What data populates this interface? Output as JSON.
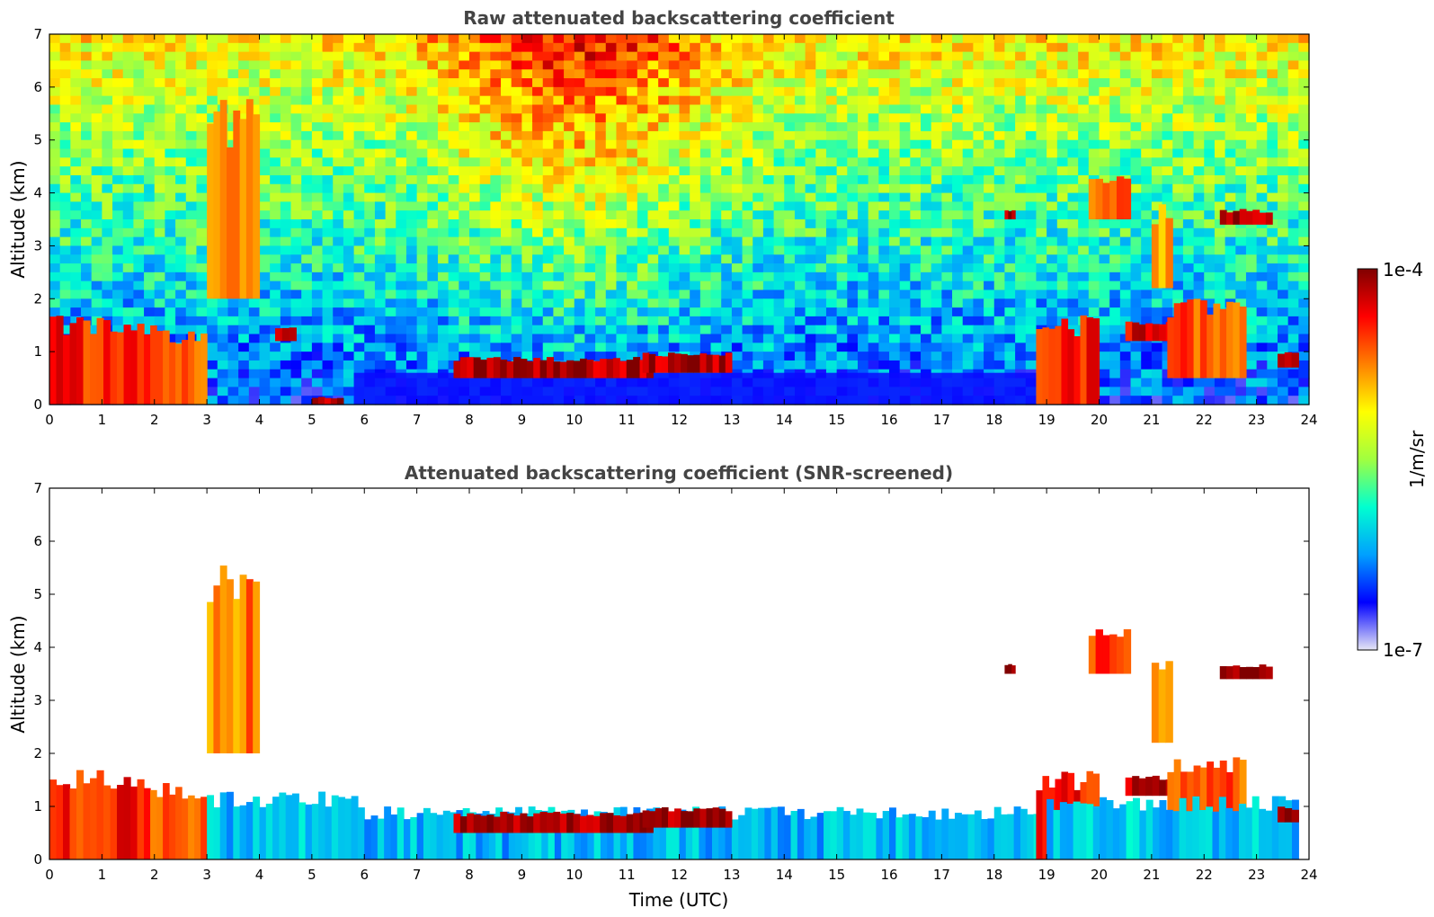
{
  "chart_data": [
    {
      "type": "heatmap",
      "title": "Raw attenuated backscattering coefficient",
      "xlabel": "",
      "ylabel": "Altitude (km)",
      "xlim": [
        0,
        24
      ],
      "ylim": [
        0,
        7
      ],
      "xticks": [
        "0",
        "1",
        "2",
        "3",
        "4",
        "5",
        "6",
        "7",
        "8",
        "9",
        "10",
        "11",
        "12",
        "13",
        "14",
        "15",
        "16",
        "17",
        "18",
        "19",
        "20",
        "21",
        "22",
        "23",
        "24"
      ],
      "yticks": [
        "0",
        "1",
        "2",
        "3",
        "4",
        "5",
        "6",
        "7"
      ],
      "colormap": "jet",
      "background_noise": "high",
      "features": [
        {
          "t0": 0.0,
          "t1": 1.8,
          "z0": 0.0,
          "z1": 1.7,
          "level": 0.85
        },
        {
          "t0": 1.8,
          "t1": 3.0,
          "z0": 0.0,
          "z1": 1.5,
          "level": 0.8
        },
        {
          "t0": 3.0,
          "t1": 4.0,
          "z0": 2.0,
          "z1": 5.8,
          "level": 0.75
        },
        {
          "t0": 4.3,
          "t1": 4.7,
          "z0": 1.2,
          "z1": 1.5,
          "level": 0.9
        },
        {
          "t0": 5.0,
          "t1": 5.6,
          "z0": 0.0,
          "z1": 0.15,
          "level": 0.95
        },
        {
          "t0": 7.7,
          "t1": 11.5,
          "z0": 0.5,
          "z1": 0.9,
          "level": 0.95
        },
        {
          "t0": 11.3,
          "t1": 13.0,
          "z0": 0.6,
          "z1": 1.0,
          "level": 0.95
        },
        {
          "t0": 18.2,
          "t1": 18.4,
          "z0": 3.5,
          "z1": 3.7,
          "level": 0.95
        },
        {
          "t0": 18.8,
          "t1": 20.0,
          "z0": 0.0,
          "z1": 1.7,
          "level": 0.85
        },
        {
          "t0": 19.8,
          "t1": 20.6,
          "z0": 3.5,
          "z1": 4.4,
          "level": 0.8
        },
        {
          "t0": 20.5,
          "t1": 22.3,
          "z0": 1.2,
          "z1": 1.6,
          "level": 0.9
        },
        {
          "t0": 21.0,
          "t1": 21.4,
          "z0": 2.2,
          "z1": 3.8,
          "level": 0.7
        },
        {
          "t0": 21.3,
          "t1": 22.8,
          "z0": 0.5,
          "z1": 2.0,
          "level": 0.8
        },
        {
          "t0": 22.3,
          "t1": 23.3,
          "z0": 3.4,
          "z1": 3.7,
          "level": 0.95
        },
        {
          "t0": 23.4,
          "t1": 23.8,
          "z0": 0.7,
          "z1": 1.0,
          "level": 0.9
        }
      ]
    },
    {
      "type": "heatmap",
      "title": "Attenuated backscattering coefficient (SNR-screened)",
      "xlabel": "Time (UTC)",
      "ylabel": "Altitude (km)",
      "xlim": [
        0,
        24
      ],
      "ylim": [
        0,
        7
      ],
      "xticks": [
        "0",
        "1",
        "2",
        "3",
        "4",
        "5",
        "6",
        "7",
        "8",
        "9",
        "10",
        "11",
        "12",
        "13",
        "14",
        "15",
        "16",
        "17",
        "18",
        "19",
        "20",
        "21",
        "22",
        "23",
        "24"
      ],
      "yticks": [
        "0",
        "1",
        "2",
        "3",
        "4",
        "5",
        "6",
        "7"
      ],
      "colormap": "jet",
      "background_noise": "none",
      "features": [
        {
          "t0": 0.0,
          "t1": 1.8,
          "z0": 0.0,
          "z1": 1.7,
          "level": 0.85
        },
        {
          "t0": 1.8,
          "t1": 3.0,
          "z0": 0.0,
          "z1": 1.5,
          "level": 0.8
        },
        {
          "t0": 3.0,
          "t1": 4.0,
          "z0": 2.0,
          "z1": 5.8,
          "level": 0.75
        },
        {
          "t0": 3.0,
          "t1": 6.0,
          "z0": 0.0,
          "z1": 1.3,
          "level": 0.3
        },
        {
          "t0": 6.0,
          "t1": 19.0,
          "z0": 0.0,
          "z1": 1.0,
          "level": 0.28
        },
        {
          "t0": 7.7,
          "t1": 11.5,
          "z0": 0.5,
          "z1": 0.9,
          "level": 0.97
        },
        {
          "t0": 11.3,
          "t1": 13.0,
          "z0": 0.6,
          "z1": 1.0,
          "level": 0.97
        },
        {
          "t0": 18.2,
          "t1": 18.4,
          "z0": 3.5,
          "z1": 3.7,
          "level": 0.97
        },
        {
          "t0": 18.8,
          "t1": 20.0,
          "z0": 0.0,
          "z1": 1.7,
          "level": 0.85
        },
        {
          "t0": 19.8,
          "t1": 20.6,
          "z0": 3.5,
          "z1": 4.4,
          "level": 0.8
        },
        {
          "t0": 20.5,
          "t1": 22.3,
          "z0": 1.2,
          "z1": 1.6,
          "level": 0.95
        },
        {
          "t0": 21.0,
          "t1": 21.4,
          "z0": 2.2,
          "z1": 3.8,
          "level": 0.7
        },
        {
          "t0": 21.3,
          "t1": 22.8,
          "z0": 0.5,
          "z1": 2.0,
          "level": 0.8
        },
        {
          "t0": 22.3,
          "t1": 23.3,
          "z0": 3.4,
          "z1": 3.7,
          "level": 0.97
        },
        {
          "t0": 19.0,
          "t1": 23.8,
          "z0": 0.0,
          "z1": 1.2,
          "level": 0.3
        },
        {
          "t0": 23.4,
          "t1": 23.8,
          "z0": 0.7,
          "z1": 1.0,
          "level": 0.95
        }
      ]
    }
  ],
  "colorbar": {
    "label": "1/m/sr",
    "max_label": "1e-4",
    "min_label": "1e-7",
    "stops": [
      "#e6e6f5",
      "#0000ff",
      "#00a0ff",
      "#00ffd0",
      "#a0ff40",
      "#ffff00",
      "#ff8000",
      "#ff0000",
      "#800000"
    ]
  }
}
